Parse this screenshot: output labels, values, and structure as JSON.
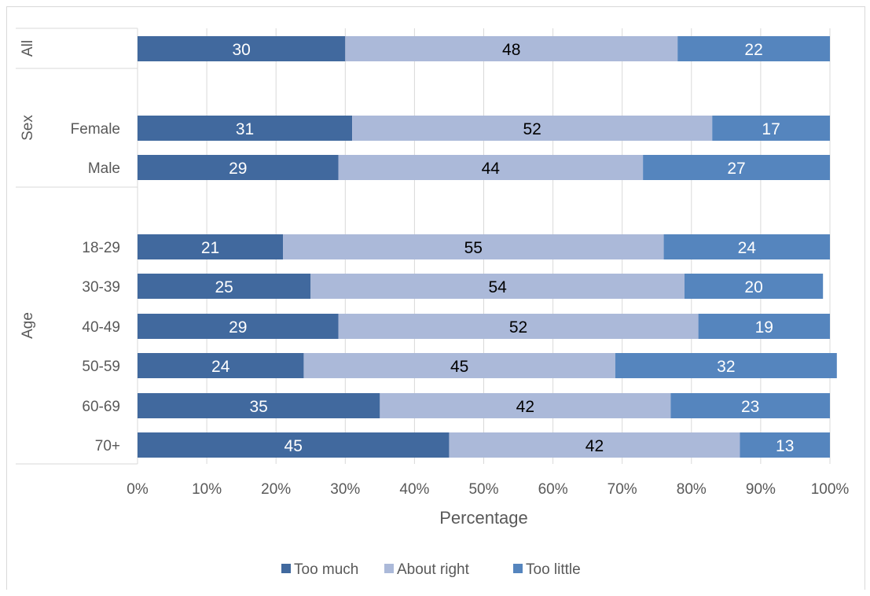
{
  "chart_data": {
    "type": "bar",
    "orientation": "horizontal",
    "stacked": true,
    "title": "",
    "xlabel": "Percentage",
    "ylabel": "",
    "xlim": [
      0,
      100
    ],
    "x_tick_labels": [
      "0%",
      "10%",
      "20%",
      "30%",
      "40%",
      "50%",
      "60%",
      "70%",
      "80%",
      "90%",
      "100%"
    ],
    "grid": true,
    "legend_position": "bottom",
    "groups": [
      {
        "name": "All",
        "rows": [
          {
            "label": "",
            "values": [
              30,
              48,
              22
            ]
          }
        ]
      },
      {
        "name": "Sex",
        "rows": [
          {
            "label": "Female",
            "values": [
              31,
              52,
              17
            ]
          },
          {
            "label": "Male",
            "values": [
              29,
              44,
              27
            ]
          }
        ]
      },
      {
        "name": "Age",
        "rows": [
          {
            "label": "18-29",
            "values": [
              21,
              55,
              24
            ]
          },
          {
            "label": "30-39",
            "values": [
              25,
              54,
              20
            ]
          },
          {
            "label": "40-49",
            "values": [
              29,
              52,
              19
            ]
          },
          {
            "label": "50-59",
            "values": [
              24,
              45,
              32
            ]
          },
          {
            "label": "60-69",
            "values": [
              35,
              42,
              23
            ]
          },
          {
            "label": "70+",
            "values": [
              45,
              42,
              13
            ]
          }
        ]
      }
    ],
    "series": [
      {
        "name": "Too much",
        "color": "#41699e"
      },
      {
        "name": "About right",
        "color": "#abb9d9"
      },
      {
        "name": "Too little",
        "color": "#5585be"
      }
    ],
    "label_colors": [
      "#ffffff",
      "#000000",
      "#ffffff"
    ]
  }
}
